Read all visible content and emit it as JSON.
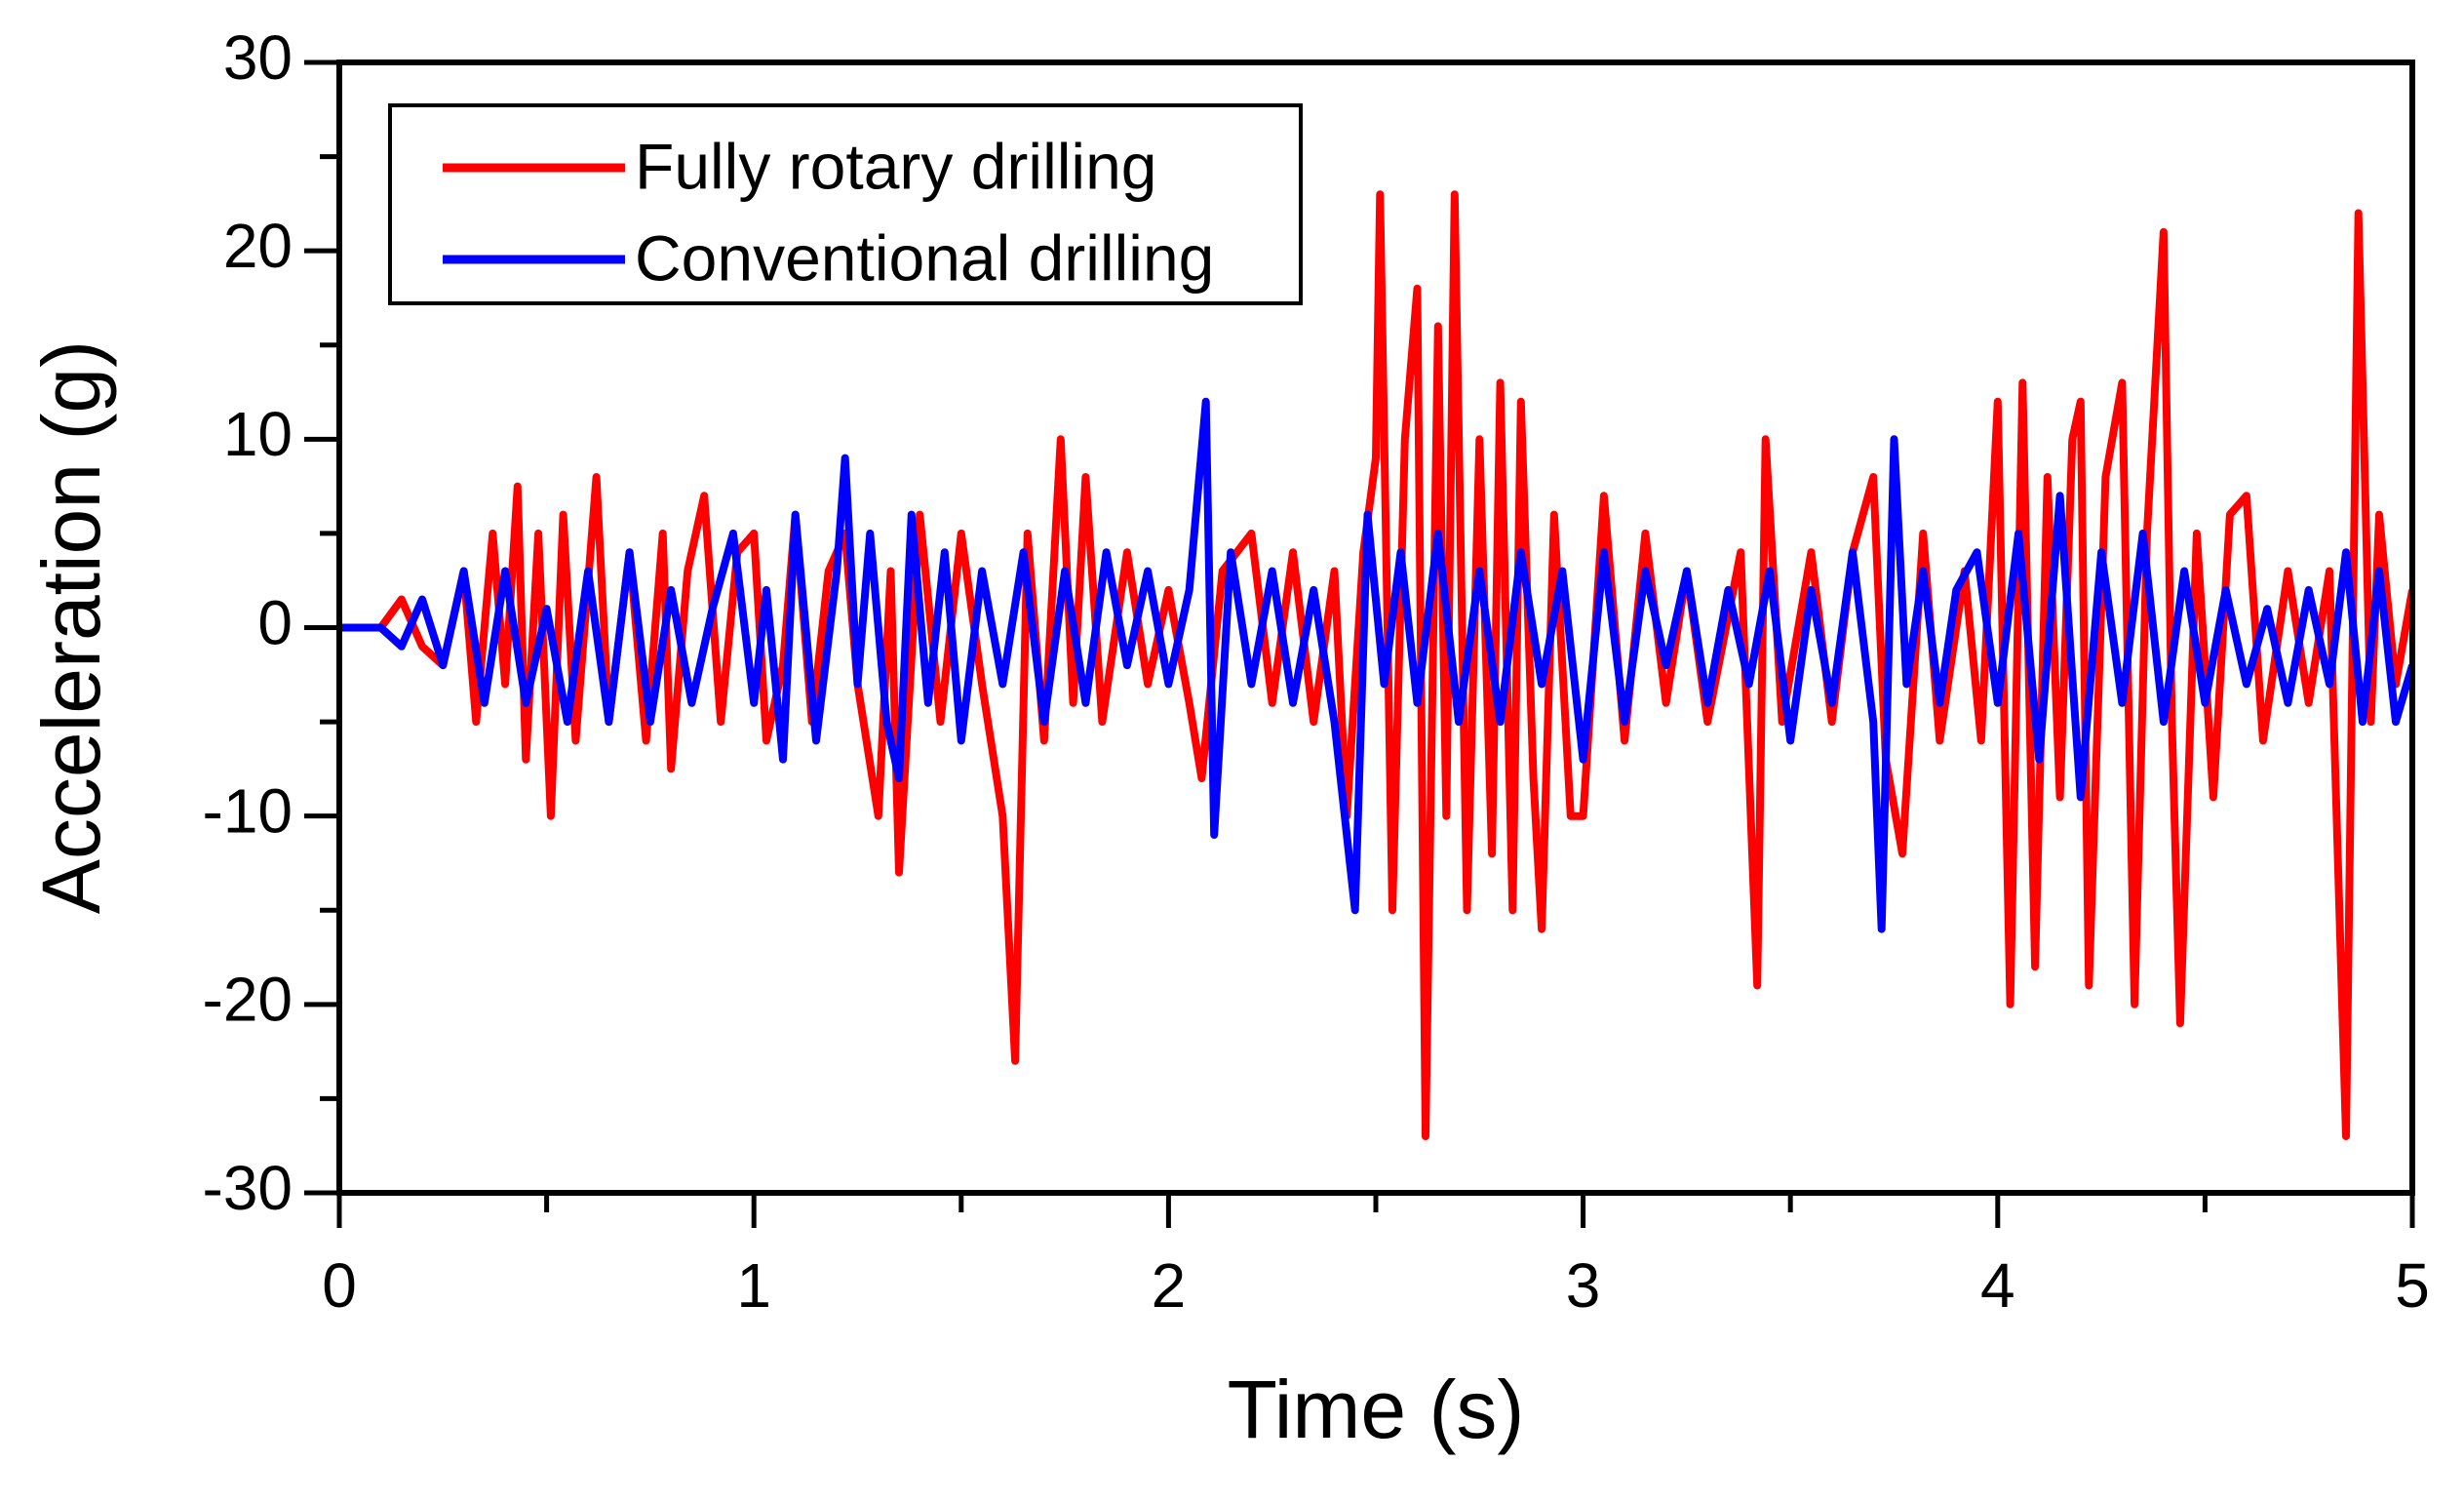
{
  "chart_data": {
    "type": "line",
    "xlabel": "Time (s)",
    "ylabel": "Acceleration (g)",
    "xlim": [
      0,
      5
    ],
    "xticks": [
      0,
      1,
      2,
      3,
      4,
      5
    ],
    "minor_xticks": [
      0.5,
      1.5,
      2.5,
      3.5,
      4.5
    ],
    "ylim": [
      -30,
      30
    ],
    "yticks": [
      -30,
      -20,
      -10,
      0,
      10,
      20,
      30
    ],
    "minor_yticks": [
      -25,
      -15,
      -5,
      5,
      15,
      25
    ],
    "legend": "upper left",
    "series": [
      {
        "name": "Fully rotary drilling",
        "color": "#ff0000",
        "x": [
          0,
          0.1,
          0.15,
          0.2,
          0.25,
          0.3,
          0.33,
          0.37,
          0.4,
          0.43,
          0.45,
          0.48,
          0.51,
          0.54,
          0.57,
          0.62,
          0.65,
          0.7,
          0.74,
          0.78,
          0.8,
          0.84,
          0.88,
          0.92,
          0.96,
          1.0,
          1.03,
          1.07,
          1.1,
          1.14,
          1.18,
          1.22,
          1.25,
          1.3,
          1.33,
          1.35,
          1.4,
          1.45,
          1.5,
          1.55,
          1.6,
          1.63,
          1.66,
          1.7,
          1.74,
          1.77,
          1.8,
          1.84,
          1.9,
          1.95,
          2.0,
          2.05,
          2.08,
          2.13,
          2.2,
          2.25,
          2.3,
          2.35,
          2.4,
          2.43,
          2.47,
          2.5,
          2.51,
          2.54,
          2.57,
          2.6,
          2.62,
          2.65,
          2.67,
          2.69,
          2.72,
          2.75,
          2.78,
          2.8,
          2.83,
          2.85,
          2.88,
          2.9,
          2.93,
          2.97,
          3.0,
          3.05,
          3.1,
          3.15,
          3.2,
          3.25,
          3.3,
          3.38,
          3.42,
          3.44,
          3.48,
          3.55,
          3.6,
          3.65,
          3.7,
          3.73,
          3.77,
          3.82,
          3.86,
          3.92,
          3.96,
          4.0,
          4.03,
          4.06,
          4.09,
          4.12,
          4.15,
          4.18,
          4.2,
          4.22,
          4.26,
          4.3,
          4.33,
          4.36,
          4.4,
          4.42,
          4.44,
          4.48,
          4.52,
          4.56,
          4.6,
          4.64,
          4.7,
          4.75,
          4.8,
          4.84,
          4.87,
          4.9,
          4.92,
          4.96,
          5.0
        ],
        "values": [
          0,
          0,
          1.5,
          -1,
          -2,
          3,
          -5,
          5,
          -3,
          7.5,
          -7,
          5,
          -10,
          6,
          -6,
          8,
          -5,
          4,
          -6,
          5,
          -7.5,
          3,
          7,
          -5,
          4,
          5,
          -6,
          -2,
          6,
          -5,
          3,
          5,
          -3,
          -10,
          3,
          -13,
          6,
          -5,
          5,
          -3,
          -10,
          -23,
          5,
          -6,
          10,
          -4,
          8,
          -5,
          4,
          -3,
          2,
          -4,
          -8,
          3,
          5,
          -4,
          4,
          -5,
          3,
          -10,
          4,
          9,
          23,
          -15,
          10,
          18,
          -27,
          16,
          -10,
          23,
          -15,
          10,
          -12,
          13,
          -15,
          12,
          -8,
          -16,
          6,
          -10,
          -10,
          7,
          -6,
          5,
          -4,
          3,
          -5,
          4,
          -19,
          10,
          -5,
          4,
          -5,
          4,
          8,
          -7,
          -12,
          5,
          -6,
          3,
          -6,
          12,
          -20,
          13,
          -18,
          8,
          -9,
          10,
          12,
          -19,
          8,
          13,
          -20,
          5,
          21,
          -5,
          -21,
          5,
          -9,
          6,
          7,
          -6,
          3,
          -4,
          3,
          -27,
          22,
          -5,
          6,
          -3,
          2
        ]
      },
      {
        "name": "Conventional drilling",
        "color": "#0000ff",
        "x": [
          0,
          0.1,
          0.15,
          0.2,
          0.25,
          0.3,
          0.35,
          0.4,
          0.45,
          0.5,
          0.55,
          0.6,
          0.65,
          0.7,
          0.75,
          0.8,
          0.85,
          0.9,
          0.95,
          1.0,
          1.03,
          1.07,
          1.1,
          1.15,
          1.2,
          1.22,
          1.25,
          1.28,
          1.32,
          1.35,
          1.38,
          1.42,
          1.46,
          1.5,
          1.55,
          1.6,
          1.65,
          1.7,
          1.75,
          1.8,
          1.85,
          1.9,
          1.95,
          2.0,
          2.05,
          2.09,
          2.11,
          2.15,
          2.2,
          2.25,
          2.3,
          2.35,
          2.4,
          2.45,
          2.48,
          2.52,
          2.56,
          2.6,
          2.65,
          2.7,
          2.75,
          2.8,
          2.85,
          2.9,
          2.95,
          3.0,
          3.05,
          3.1,
          3.15,
          3.2,
          3.25,
          3.3,
          3.35,
          3.4,
          3.45,
          3.5,
          3.55,
          3.6,
          3.65,
          3.7,
          3.72,
          3.75,
          3.78,
          3.82,
          3.86,
          3.9,
          3.95,
          4.0,
          4.05,
          4.1,
          4.15,
          4.2,
          4.25,
          4.3,
          4.35,
          4.4,
          4.45,
          4.5,
          4.55,
          4.6,
          4.65,
          4.7,
          4.75,
          4.8,
          4.84,
          4.88,
          4.92,
          4.96,
          5.0
        ],
        "values": [
          0,
          0,
          -1,
          1.5,
          -2,
          3,
          -4,
          3,
          -4,
          1,
          -5,
          3,
          -5,
          4,
          -5,
          2,
          -4,
          1,
          5,
          -4,
          2,
          -7,
          6,
          -6,
          3,
          9,
          -3,
          5,
          -5,
          -8,
          6,
          -4,
          4,
          -6,
          3,
          -3,
          4,
          -5,
          3,
          -4,
          4,
          -2,
          3,
          -3,
          2,
          12,
          -11,
          4,
          -3,
          3,
          -4,
          2,
          -5,
          -15,
          6,
          -3,
          4,
          -4,
          5,
          -5,
          3,
          -5,
          4,
          -3,
          3,
          -7,
          4,
          -5,
          3,
          -2,
          3,
          -4,
          2,
          -3,
          3,
          -6,
          2,
          -4,
          4,
          -5,
          -16,
          10,
          -3,
          3,
          -4,
          2,
          4,
          -4,
          5,
          -7,
          7,
          -9,
          4,
          -4,
          5,
          -5,
          3,
          -4,
          2,
          -3,
          1,
          -4,
          2,
          -3,
          4,
          -5,
          3,
          -5,
          -2
        ]
      }
    ]
  }
}
